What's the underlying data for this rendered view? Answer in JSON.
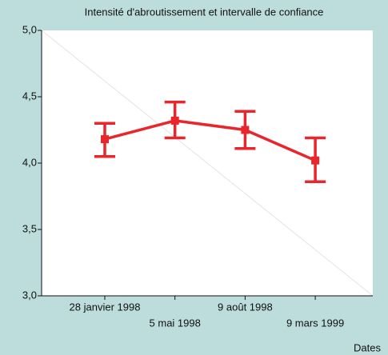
{
  "chart_data": {
    "type": "line",
    "title": "Intensité d'abroutissement et intervalle de confiance",
    "x_label": "Dates",
    "categories": [
      "28 janvier 1998",
      "5 mai 1998",
      "9 août 1998",
      "9 mars 1999"
    ],
    "series": [
      {
        "color": "#e8262b",
        "values": [
          4.18,
          4.32,
          4.25,
          4.02
        ],
        "lower": [
          4.05,
          4.19,
          4.11,
          3.86
        ],
        "upper": [
          4.3,
          4.46,
          4.39,
          4.19
        ]
      }
    ],
    "ylim": [
      3,
      5
    ],
    "yticks": [
      {
        "value": 3,
        "label": "3,0"
      },
      {
        "value": 3.5,
        "label": "3,5"
      },
      {
        "value": 4,
        "label": "4,0"
      },
      {
        "value": 4.5,
        "label": "4,5"
      },
      {
        "value": 5,
        "label": "5,0"
      }
    ]
  }
}
